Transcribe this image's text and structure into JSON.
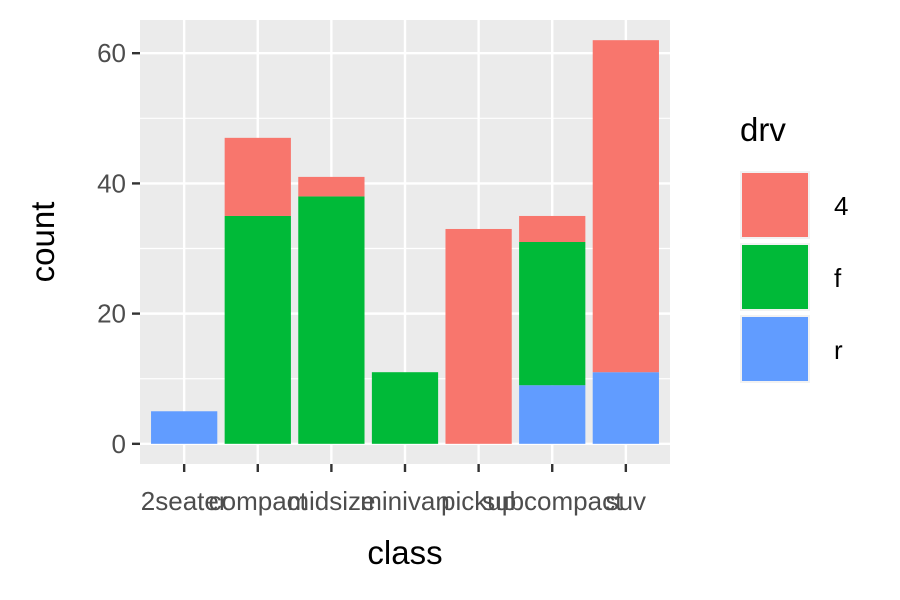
{
  "chart_data": {
    "type": "bar",
    "stacked": true,
    "categories": [
      "2seater",
      "compact",
      "midsize",
      "minivan",
      "pickup",
      "subcompact",
      "suv"
    ],
    "series": [
      {
        "name": "4",
        "color": "#F8766D",
        "values": [
          0,
          12,
          3,
          0,
          33,
          4,
          51
        ]
      },
      {
        "name": "f",
        "color": "#00BA38",
        "values": [
          0,
          35,
          38,
          11,
          0,
          22,
          0
        ]
      },
      {
        "name": "r",
        "color": "#619CFF",
        "values": [
          5,
          0,
          0,
          0,
          0,
          9,
          11
        ]
      }
    ],
    "xlabel": "class",
    "ylabel": "count",
    "ylim": [
      0,
      62
    ],
    "yticks": [
      0,
      20,
      40,
      60
    ],
    "legend_title": "drv",
    "legend_position": "right",
    "panel_background": "#EBEBEB",
    "grid": true
  }
}
